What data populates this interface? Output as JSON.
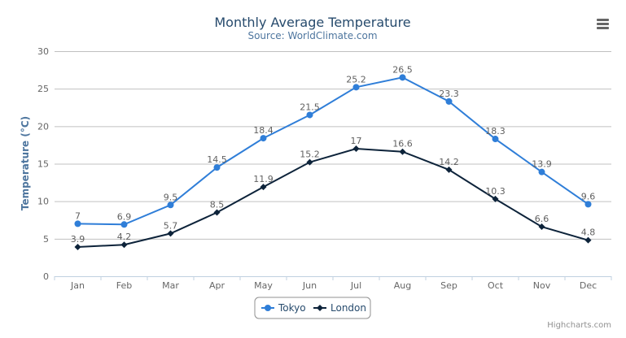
{
  "chart_data": {
    "type": "line",
    "title": "Monthly Average Temperature",
    "subtitle": "Source: WorldClimate.com",
    "xlabel": "",
    "ylabel": "Temperature (°C)",
    "categories": [
      "Jan",
      "Feb",
      "Mar",
      "Apr",
      "May",
      "Jun",
      "Jul",
      "Aug",
      "Sep",
      "Oct",
      "Nov",
      "Dec"
    ],
    "ylim": [
      0,
      30
    ],
    "yticks": [
      0,
      5,
      10,
      15,
      20,
      25,
      30
    ],
    "grid": true,
    "legend_position": "bottom-center",
    "data_labels": true,
    "series": [
      {
        "name": "Tokyo",
        "color": "#2f7ed8",
        "marker": "circle",
        "values": [
          7.0,
          6.9,
          9.5,
          14.5,
          18.4,
          21.5,
          25.2,
          26.5,
          23.3,
          18.3,
          13.9,
          9.6
        ]
      },
      {
        "name": "London",
        "color": "#0d233a",
        "marker": "diamond",
        "values": [
          3.9,
          4.2,
          5.7,
          8.5,
          11.9,
          15.2,
          17.0,
          16.6,
          14.2,
          10.3,
          6.6,
          4.8
        ]
      }
    ]
  },
  "menu_icon": "hamburger-menu-icon",
  "credits": "Highcharts.com"
}
